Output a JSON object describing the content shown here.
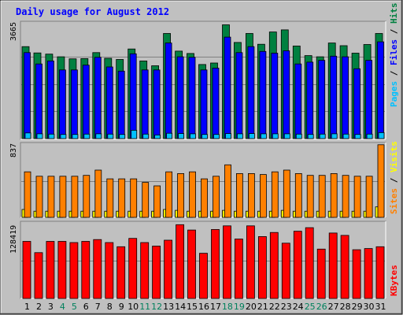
{
  "chart_data": {
    "type": "bar",
    "title": "Daily usage for August 2012",
    "days": [
      "1",
      "2",
      "3",
      "4",
      "5",
      "6",
      "7",
      "8",
      "9",
      "10",
      "11",
      "12",
      "13",
      "14",
      "15",
      "16",
      "17",
      "18",
      "19",
      "20",
      "21",
      "22",
      "23",
      "24",
      "25",
      "26",
      "27",
      "28",
      "29",
      "30",
      "31"
    ],
    "weekend_days": [
      "4",
      "5",
      "11",
      "12",
      "18",
      "19",
      "25",
      "26"
    ],
    "panels": [
      {
        "id": "hits-files-pages",
        "max_label": "3665",
        "ymax": 3665,
        "series": [
          {
            "name": "Hits",
            "color": "#008040",
            "values": [
              3080,
              2870,
              2830,
              2740,
              2670,
              2680,
              2880,
              2690,
              2650,
              3000,
              2600,
              2440,
              3520,
              2930,
              2850,
              2480,
              2530,
              3810,
              3220,
              3520,
              3160,
              3570,
              3640,
              3100,
              2780,
              2740,
              3200,
              3110,
              2860,
              3150,
              3520
            ]
          },
          {
            "name": "Files",
            "color": "#0000ff",
            "values": [
              2880,
              2500,
              2600,
              2300,
              2300,
              2460,
              2720,
              2400,
              2260,
              2840,
              2300,
              2300,
              3200,
              2740,
              2720,
              2300,
              2360,
              3400,
              2880,
              3080,
              2920,
              2860,
              2940,
              2500,
              2560,
              2620,
              2760,
              2740,
              2340,
              2620,
              3240
            ]
          },
          {
            "name": "Pages",
            "color": "#00c0ff",
            "values": [
              190,
              160,
              150,
              140,
              140,
              150,
              160,
              150,
              140,
              280,
              150,
              120,
              180,
              170,
              160,
              140,
              140,
              170,
              160,
              170,
              160,
              160,
              160,
              150,
              140,
              150,
              160,
              150,
              140,
              150,
              200
            ]
          }
        ]
      },
      {
        "id": "visits-sites",
        "max_label": "837",
        "ymax": 837,
        "series": [
          {
            "name": "Visits",
            "color": "#ffff00",
            "values": [
              90,
              70,
              70,
              70,
              70,
              70,
              70,
              70,
              70,
              70,
              70,
              70,
              90,
              80,
              70,
              70,
              70,
              80,
              70,
              70,
              70,
              70,
              80,
              70,
              70,
              70,
              70,
              70,
              70,
              70,
              120
            ]
          },
          {
            "name": "Sites",
            "color": "#ff8000",
            "values": [
              520,
              470,
              470,
              470,
              470,
              480,
              540,
              440,
              440,
              440,
              400,
              360,
              520,
              500,
              520,
              440,
              470,
              600,
              500,
              500,
              490,
              520,
              540,
              500,
              480,
              480,
              500,
              480,
              470,
              470,
              830
            ]
          }
        ]
      },
      {
        "id": "kbytes",
        "max_label": "128419",
        "ymax": 128419,
        "series": [
          {
            "name": "KBytes",
            "color": "#ff0000",
            "values": [
              96000,
              77000,
              96000,
              96000,
              94000,
              96000,
              99000,
              94000,
              87000,
              101000,
              94000,
              88000,
              98000,
              124000,
              115000,
              76000,
              116000,
              122000,
              100000,
              122000,
              104000,
              111000,
              93000,
              113000,
              119000,
              83000,
              110000,
              106000,
              82000,
              84000,
              87000
            ]
          }
        ]
      }
    ]
  },
  "labels": {
    "title": "Daily usage for August 2012",
    "top_legend": {
      "pages": "Pages",
      "sep1": " / ",
      "files": "Files",
      "sep2": " / ",
      "hits": "Hits"
    },
    "mid_legend": {
      "sites": "Sites",
      "sep": " / ",
      "visits": "Visits"
    },
    "bottom_legend": {
      "kbytes": "KBytes"
    }
  },
  "colors": {
    "background": "#c0c0c0",
    "title": "#0000ff",
    "weekday_label": "#000000",
    "weekend_label": "#00805c",
    "hits_legend": "#008040",
    "files_legend": "#0000ff",
    "pages_legend": "#00c0ff",
    "sites_legend": "#ff8000",
    "visits_legend": "#ffff00",
    "kbytes_legend": "#ff0000"
  }
}
